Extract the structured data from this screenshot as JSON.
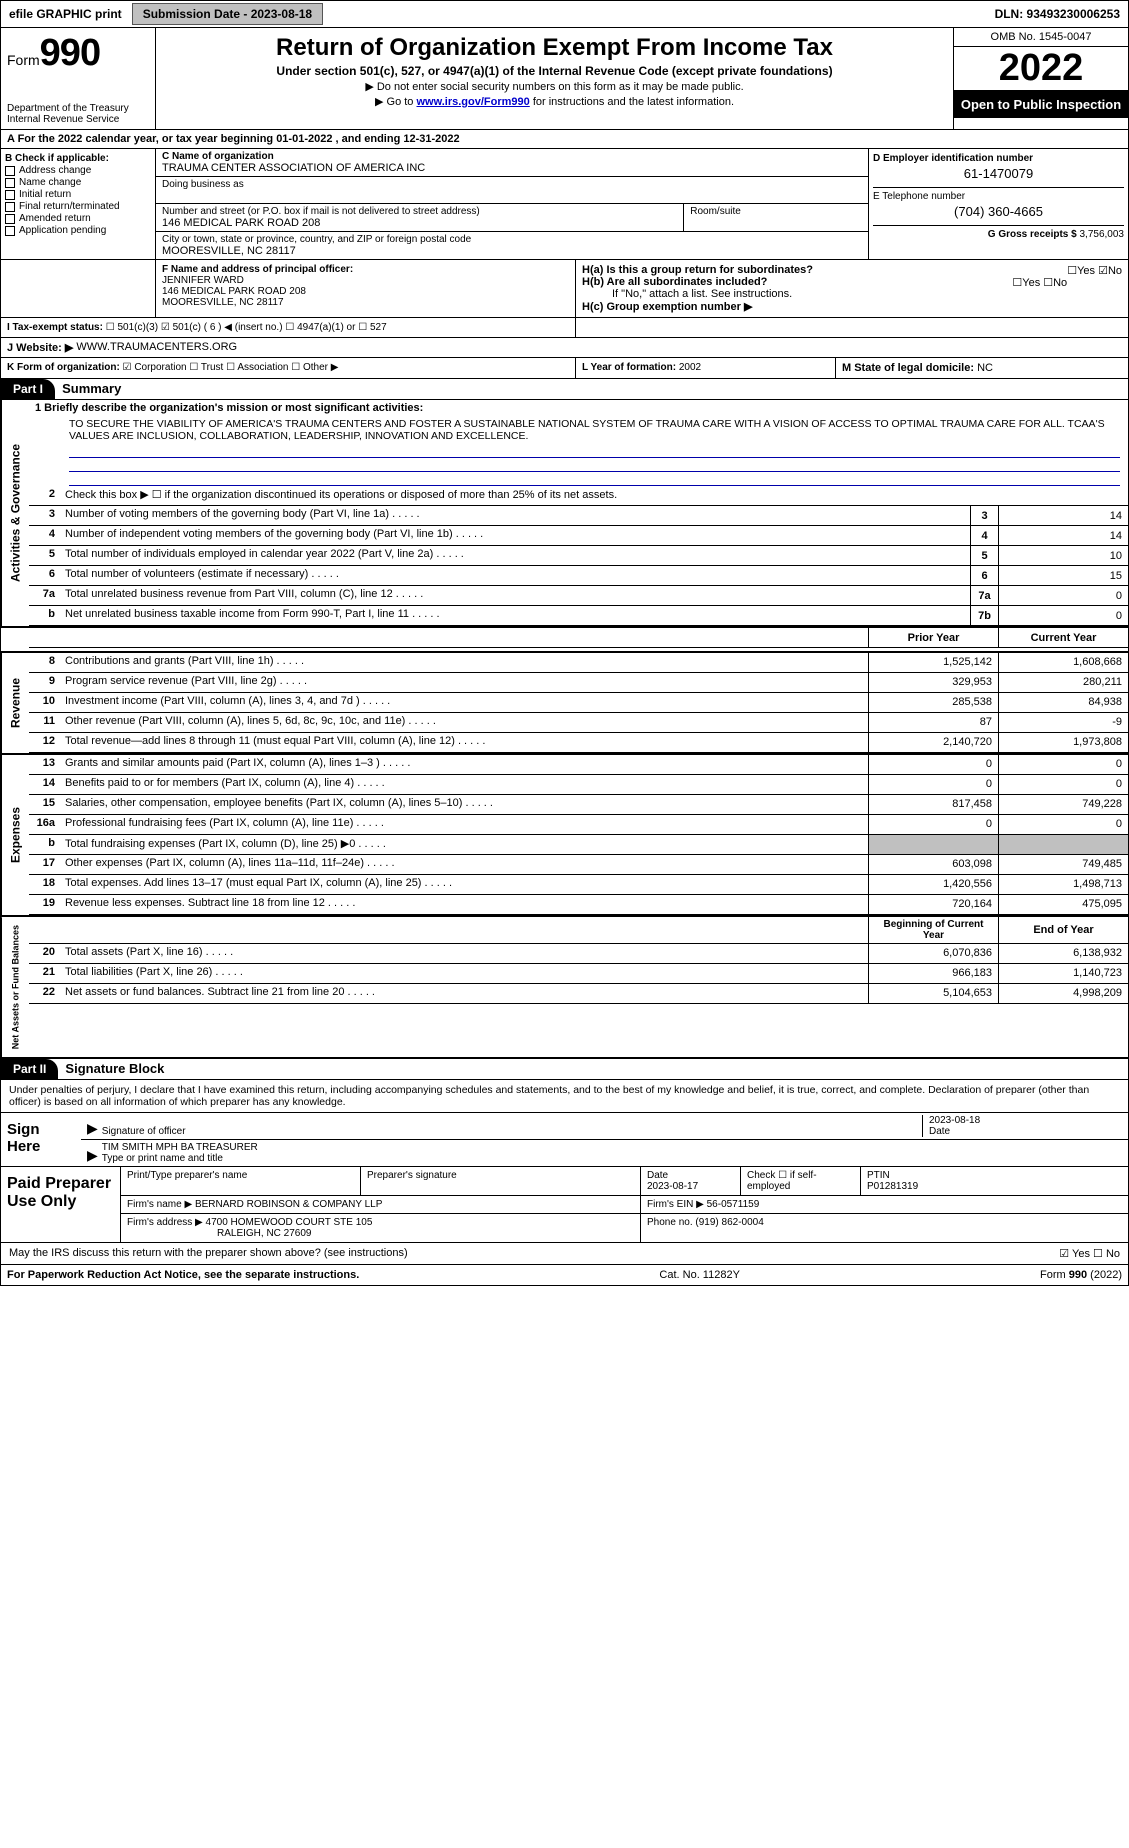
{
  "topbar": {
    "efile": "efile GRAPHIC print",
    "submission_btn": "Submission Date - 2023-08-18",
    "dln": "DLN: 93493230006253"
  },
  "header": {
    "form_label": "Form",
    "form_num": "990",
    "dept": "Department of the Treasury",
    "irs": "Internal Revenue Service",
    "title": "Return of Organization Exempt From Income Tax",
    "subtitle": "Under section 501(c), 527, or 4947(a)(1) of the Internal Revenue Code (except private foundations)",
    "note1": "▶ Do not enter social security numbers on this form as it may be made public.",
    "note2_pre": "▶ Go to ",
    "note2_link": "www.irs.gov/Form990",
    "note2_post": " for instructions and the latest information.",
    "omb": "OMB No. 1545-0047",
    "year": "2022",
    "open": "Open to Public Inspection"
  },
  "sectionA": {
    "taxyear": "A For the 2022 calendar year, or tax year beginning 01-01-2022    , and ending 12-31-2022"
  },
  "sectionB": {
    "label": "B Check if applicable:",
    "items": [
      "Address change",
      "Name change",
      "Initial return",
      "Final return/terminated",
      "Amended return",
      "Application pending"
    ]
  },
  "sectionC": {
    "name_label": "C Name of organization",
    "name": "TRAUMA CENTER ASSOCIATION OF AMERICA INC",
    "dba_label": "Doing business as",
    "addr_label": "Number and street (or P.O. box if mail is not delivered to street address)",
    "room_label": "Room/suite",
    "addr": "146 MEDICAL PARK ROAD 208",
    "city_label": "City or town, state or province, country, and ZIP or foreign postal code",
    "city": "MOORESVILLE, NC  28117"
  },
  "sectionD": {
    "label": "D Employer identification number",
    "val": "61-1470079"
  },
  "sectionE": {
    "label": "E Telephone number",
    "val": "(704) 360-4665"
  },
  "sectionG": {
    "label": "G Gross receipts $",
    "val": "3,756,003"
  },
  "sectionF": {
    "label": "F Name and address of principal officer:",
    "name": "JENNIFER WARD",
    "addr1": "146 MEDICAL PARK ROAD 208",
    "addr2": "MOORESVILLE, NC  28117"
  },
  "sectionH": {
    "a": "H(a)  Is this a group return for subordinates?",
    "a_yes": "Yes",
    "a_no": "No",
    "b": "H(b)  Are all subordinates included?",
    "b_note": "If \"No,\" attach a list. See instructions.",
    "c": "H(c)  Group exemption number ▶"
  },
  "sectionI": {
    "label": "I   Tax-exempt status:",
    "opts": [
      "501(c)(3)",
      "501(c) ( 6 ) ◀ (insert no.)",
      "4947(a)(1) or",
      "527"
    ]
  },
  "sectionJ": {
    "label": "J    Website: ▶",
    "val": "WWW.TRAUMACENTERS.ORG"
  },
  "sectionK": {
    "label": "K Form of organization:",
    "opts": [
      "Corporation",
      "Trust",
      "Association",
      "Other ▶"
    ]
  },
  "sectionL": {
    "label": "L Year of formation:",
    "val": "2002"
  },
  "sectionM": {
    "label": "M State of legal domicile:",
    "val": "NC"
  },
  "parts": {
    "p1": "Part I",
    "p1t": "Summary",
    "p2": "Part II",
    "p2t": "Signature Block"
  },
  "summary": {
    "s1_label": "Activities & Governance",
    "s1_1": "1  Briefly describe the organization's mission or most significant activities:",
    "s1_mission": "TO SECURE THE VIABILITY OF AMERICA'S TRAUMA CENTERS AND FOSTER A SUSTAINABLE NATIONAL SYSTEM OF TRAUMA CARE WITH A VISION OF ACCESS TO OPTIMAL TRAUMA CARE FOR ALL. TCAA'S VALUES ARE INCLUSION, COLLABORATION, LEADERSHIP, INNOVATION AND EXCELLENCE.",
    "s1_2": "Check this box ▶ ☐  if the organization discontinued its operations or disposed of more than 25% of its net assets.",
    "lines_ag": [
      {
        "n": "3",
        "t": "Number of voting members of the governing body (Part VI, line 1a)",
        "b": "3",
        "v": "14"
      },
      {
        "n": "4",
        "t": "Number of independent voting members of the governing body (Part VI, line 1b)",
        "b": "4",
        "v": "14"
      },
      {
        "n": "5",
        "t": "Total number of individuals employed in calendar year 2022 (Part V, line 2a)",
        "b": "5",
        "v": "10"
      },
      {
        "n": "6",
        "t": "Total number of volunteers (estimate if necessary)",
        "b": "6",
        "v": "15"
      },
      {
        "n": "7a",
        "t": "Total unrelated business revenue from Part VIII, column (C), line 12",
        "b": "7a",
        "v": "0"
      },
      {
        "n": "b",
        "t": "Net unrelated business taxable income from Form 990-T, Part I, line 11",
        "b": "7b",
        "v": "0"
      }
    ],
    "hdr_prior": "Prior Year",
    "hdr_curr": "Current Year",
    "s2_label": "Revenue",
    "lines_rev": [
      {
        "n": "8",
        "t": "Contributions and grants (Part VIII, line 1h)",
        "p": "1,525,142",
        "c": "1,608,668"
      },
      {
        "n": "9",
        "t": "Program service revenue (Part VIII, line 2g)",
        "p": "329,953",
        "c": "280,211"
      },
      {
        "n": "10",
        "t": "Investment income (Part VIII, column (A), lines 3, 4, and 7d )",
        "p": "285,538",
        "c": "84,938"
      },
      {
        "n": "11",
        "t": "Other revenue (Part VIII, column (A), lines 5, 6d, 8c, 9c, 10c, and 11e)",
        "p": "87",
        "c": "-9"
      },
      {
        "n": "12",
        "t": "Total revenue—add lines 8 through 11 (must equal Part VIII, column (A), line 12)",
        "p": "2,140,720",
        "c": "1,973,808"
      }
    ],
    "s3_label": "Expenses",
    "lines_exp": [
      {
        "n": "13",
        "t": "Grants and similar amounts paid (Part IX, column (A), lines 1–3 )",
        "p": "0",
        "c": "0"
      },
      {
        "n": "14",
        "t": "Benefits paid to or for members (Part IX, column (A), line 4)",
        "p": "0",
        "c": "0"
      },
      {
        "n": "15",
        "t": "Salaries, other compensation, employee benefits (Part IX, column (A), lines 5–10)",
        "p": "817,458",
        "c": "749,228"
      },
      {
        "n": "16a",
        "t": "Professional fundraising fees (Part IX, column (A), line 11e)",
        "p": "0",
        "c": "0"
      },
      {
        "n": "b",
        "t": "Total fundraising expenses (Part IX, column (D), line 25) ▶0",
        "p": "",
        "c": "",
        "shade": true
      },
      {
        "n": "17",
        "t": "Other expenses (Part IX, column (A), lines 11a–11d, 11f–24e)",
        "p": "603,098",
        "c": "749,485"
      },
      {
        "n": "18",
        "t": "Total expenses. Add lines 13–17 (must equal Part IX, column (A), line 25)",
        "p": "1,420,556",
        "c": "1,498,713"
      },
      {
        "n": "19",
        "t": "Revenue less expenses. Subtract line 18 from line 12",
        "p": "720,164",
        "c": "475,095"
      }
    ],
    "s4_label": "Net Assets or Fund Balances",
    "hdr_beg": "Beginning of Current Year",
    "hdr_end": "End of Year",
    "lines_na": [
      {
        "n": "20",
        "t": "Total assets (Part X, line 16)",
        "p": "6,070,836",
        "c": "6,138,932"
      },
      {
        "n": "21",
        "t": "Total liabilities (Part X, line 26)",
        "p": "966,183",
        "c": "1,140,723"
      },
      {
        "n": "22",
        "t": "Net assets or fund balances. Subtract line 21 from line 20",
        "p": "5,104,653",
        "c": "4,998,209"
      }
    ]
  },
  "sig": {
    "declare": "Under penalties of perjury, I declare that I have examined this return, including accompanying schedules and statements, and to the best of my knowledge and belief, it is true, correct, and complete. Declaration of preparer (other than officer) is based on all information of which preparer has any knowledge.",
    "sign_here": "Sign Here",
    "sig_officer": "Signature of officer",
    "date": "Date",
    "sig_date": "2023-08-18",
    "name_title": "TIM SMITH MPH BA  TREASURER",
    "name_title_label": "Type or print name and title",
    "paid": "Paid Preparer Use Only",
    "prep_name_label": "Print/Type preparer's name",
    "prep_sig_label": "Preparer's signature",
    "prep_date_label": "Date",
    "prep_date": "2023-08-17",
    "check_self": "Check ☐ if self-employed",
    "ptin_label": "PTIN",
    "ptin": "P01281319",
    "firm_name_label": "Firm's name    ▶",
    "firm_name": "BERNARD ROBINSON & COMPANY LLP",
    "firm_ein_label": "Firm's EIN ▶",
    "firm_ein": "56-0571159",
    "firm_addr_label": "Firm's address ▶",
    "firm_addr1": "4700 HOMEWOOD COURT STE 105",
    "firm_addr2": "RALEIGH, NC  27609",
    "phone_label": "Phone no.",
    "phone": "(919) 862-0004",
    "may_irs": "May the IRS discuss this return with the preparer shown above? (see instructions)",
    "yes": "Yes",
    "no": "No"
  },
  "footer": {
    "paperwork": "For Paperwork Reduction Act Notice, see the separate instructions.",
    "cat": "Cat. No. 11282Y",
    "form": "Form 990 (2022)"
  }
}
